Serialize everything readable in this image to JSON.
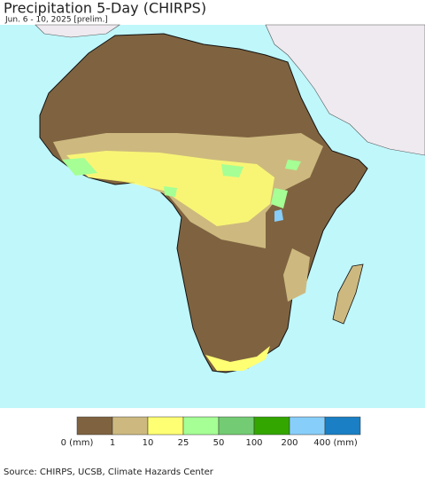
{
  "title": "Precipitation 5-Day (CHIRPS)",
  "subtitle": "Jun. 6 - 10, 2025 [prelim.]",
  "legend": [
    {
      "label": "0 (mm)",
      "color": "#7f6340"
    },
    {
      "label": "1",
      "color": "#cdb97f"
    },
    {
      "label": "10",
      "color": "#ffff73"
    },
    {
      "label": "25",
      "color": "#a5ff94"
    },
    {
      "label": "50",
      "color": "#73cc73"
    },
    {
      "label": "100",
      "color": "#33a600"
    },
    {
      "label": "200",
      "color": "#87cefa"
    },
    {
      "label": "400 (mm)",
      "color": "#1a7fc4"
    }
  ],
  "source": "Source: CHIRPS, UCSB, Climate Hazards Center"
}
